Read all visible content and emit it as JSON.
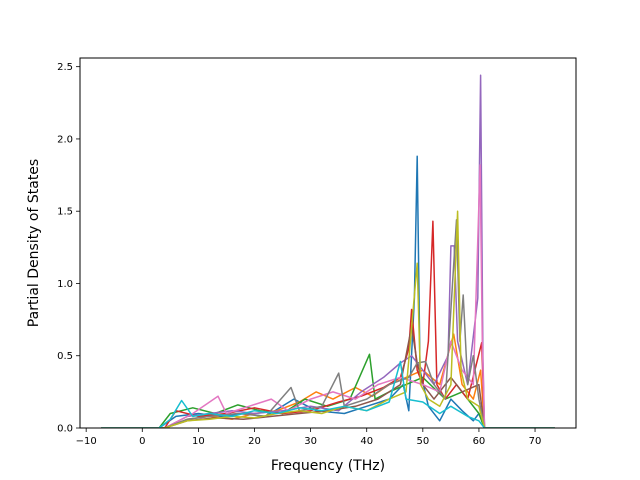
{
  "chart_data": {
    "type": "line",
    "title": "",
    "xlabel": "Frequency (THz)",
    "ylabel": "Partial Density of States",
    "xlim": [
      -11.1,
      77.3
    ],
    "ylim": [
      0.0,
      2.56
    ],
    "xticks": [
      -10,
      0,
      10,
      20,
      30,
      40,
      50,
      60,
      70
    ],
    "yticks": [
      0.0,
      0.5,
      1.0,
      1.5,
      2.0,
      2.5
    ],
    "xtick_labels": [
      "−10",
      "0",
      "10",
      "20",
      "30",
      "40",
      "50",
      "60",
      "70"
    ],
    "ytick_labels": [
      "0.0",
      "0.5",
      "1.0",
      "1.5",
      "2.0",
      "2.5"
    ],
    "grid": false,
    "legend": "none",
    "x_range": [
      -7.3,
      73.5
    ],
    "series": [
      {
        "color": "#1f77b4",
        "points": [
          [
            -7.3,
            0
          ],
          [
            3,
            0
          ],
          [
            6,
            0.08
          ],
          [
            10,
            0.1
          ],
          [
            14,
            0.08
          ],
          [
            18,
            0.1
          ],
          [
            22,
            0.08
          ],
          [
            27,
            0.2
          ],
          [
            31,
            0.12
          ],
          [
            36,
            0.1
          ],
          [
            40,
            0.15
          ],
          [
            44,
            0.2
          ],
          [
            46.5,
            0.3
          ],
          [
            47.5,
            0.12
          ],
          [
            48.5,
            0.9
          ],
          [
            49,
            1.88
          ],
          [
            49.5,
            0.4
          ],
          [
            51,
            0.15
          ],
          [
            53,
            0.05
          ],
          [
            55,
            0.2
          ],
          [
            57,
            0.12
          ],
          [
            59,
            0.05
          ],
          [
            60,
            0.1
          ],
          [
            61,
            0
          ],
          [
            73.5,
            0
          ]
        ]
      },
      {
        "color": "#ff7f0e",
        "points": [
          [
            -7.3,
            0
          ],
          [
            4,
            0
          ],
          [
            8,
            0.06
          ],
          [
            12,
            0.08
          ],
          [
            16,
            0.06
          ],
          [
            20,
            0.1
          ],
          [
            24,
            0.12
          ],
          [
            28,
            0.18
          ],
          [
            31,
            0.25
          ],
          [
            34,
            0.2
          ],
          [
            38,
            0.28
          ],
          [
            41,
            0.22
          ],
          [
            44,
            0.3
          ],
          [
            47,
            0.35
          ],
          [
            50,
            0.4
          ],
          [
            53,
            0.3
          ],
          [
            55.5,
            0.65
          ],
          [
            57,
            0.3
          ],
          [
            59,
            0.2
          ],
          [
            60.3,
            0.4
          ],
          [
            61,
            0
          ],
          [
            73.5,
            0
          ]
        ]
      },
      {
        "color": "#2ca02c",
        "points": [
          [
            -7.3,
            0
          ],
          [
            3,
            0
          ],
          [
            5,
            0.1
          ],
          [
            9,
            0.14
          ],
          [
            13,
            0.1
          ],
          [
            17,
            0.16
          ],
          [
            21,
            0.12
          ],
          [
            25,
            0.1
          ],
          [
            29,
            0.2
          ],
          [
            33,
            0.15
          ],
          [
            37,
            0.2
          ],
          [
            40.5,
            0.51
          ],
          [
            41.5,
            0.2
          ],
          [
            44,
            0.25
          ],
          [
            47,
            0.3
          ],
          [
            50,
            0.35
          ],
          [
            54,
            0.2
          ],
          [
            57,
            0.25
          ],
          [
            60,
            0.1
          ],
          [
            61,
            0
          ],
          [
            73.5,
            0
          ]
        ]
      },
      {
        "color": "#d62728",
        "points": [
          [
            -7.3,
            0
          ],
          [
            4,
            0
          ],
          [
            6,
            0.12
          ],
          [
            10,
            0.08
          ],
          [
            15,
            0.1
          ],
          [
            20,
            0.14
          ],
          [
            25,
            0.1
          ],
          [
            30,
            0.12
          ],
          [
            35,
            0.18
          ],
          [
            39,
            0.22
          ],
          [
            43,
            0.28
          ],
          [
            46,
            0.35
          ],
          [
            47.5,
            0.55
          ],
          [
            48,
            0.82
          ],
          [
            49,
            0.4
          ],
          [
            50,
            0.3
          ],
          [
            51,
            0.6
          ],
          [
            51.8,
            1.43
          ],
          [
            52.5,
            0.3
          ],
          [
            54,
            0.2
          ],
          [
            56,
            0.3
          ],
          [
            58,
            0.2
          ],
          [
            60.5,
            0.59
          ],
          [
            61,
            0
          ],
          [
            73.5,
            0
          ]
        ]
      },
      {
        "color": "#9467bd",
        "points": [
          [
            -7.3,
            0
          ],
          [
            4,
            0
          ],
          [
            8,
            0.08
          ],
          [
            12,
            0.1
          ],
          [
            16,
            0.12
          ],
          [
            20,
            0.1
          ],
          [
            25,
            0.12
          ],
          [
            30,
            0.15
          ],
          [
            35,
            0.12
          ],
          [
            39,
            0.25
          ],
          [
            43,
            0.35
          ],
          [
            46,
            0.45
          ],
          [
            48,
            0.5
          ],
          [
            50,
            0.4
          ],
          [
            52,
            0.3
          ],
          [
            54.5,
            0.5
          ],
          [
            55,
            1.26
          ],
          [
            55.6,
            1.26
          ],
          [
            56.2,
            0.6
          ],
          [
            58,
            0.3
          ],
          [
            59.8,
            0.9
          ],
          [
            60.3,
            2.44
          ],
          [
            60.7,
            0.5
          ],
          [
            61,
            0
          ],
          [
            73.5,
            0
          ]
        ]
      },
      {
        "color": "#8c564b",
        "points": [
          [
            -7.3,
            0
          ],
          [
            4,
            0
          ],
          [
            8,
            0.05
          ],
          [
            13,
            0.07
          ],
          [
            18,
            0.06
          ],
          [
            23,
            0.08
          ],
          [
            28,
            0.1
          ],
          [
            33,
            0.12
          ],
          [
            38,
            0.15
          ],
          [
            42,
            0.2
          ],
          [
            46,
            0.3
          ],
          [
            48,
            0.7
          ],
          [
            49,
            0.45
          ],
          [
            50,
            0.3
          ],
          [
            52,
            0.2
          ],
          [
            55,
            0.35
          ],
          [
            57,
            0.25
          ],
          [
            60,
            0.3
          ],
          [
            61,
            0
          ],
          [
            73.5,
            0
          ]
        ]
      },
      {
        "color": "#e377c2",
        "points": [
          [
            -7.3,
            0
          ],
          [
            4,
            0
          ],
          [
            9,
            0.1
          ],
          [
            13.5,
            0.22
          ],
          [
            15,
            0.1
          ],
          [
            19,
            0.15
          ],
          [
            23,
            0.2
          ],
          [
            26,
            0.12
          ],
          [
            30,
            0.2
          ],
          [
            34,
            0.25
          ],
          [
            38,
            0.2
          ],
          [
            42,
            0.3
          ],
          [
            46,
            0.35
          ],
          [
            50,
            0.3
          ],
          [
            53,
            0.25
          ],
          [
            55,
            0.6
          ],
          [
            57,
            0.4
          ],
          [
            59,
            0.3
          ],
          [
            60.2,
            1.82
          ],
          [
            60.6,
            0.6
          ],
          [
            61,
            0
          ],
          [
            73.5,
            0
          ]
        ]
      },
      {
        "color": "#7f7f7f",
        "points": [
          [
            -7.3,
            0
          ],
          [
            4,
            0
          ],
          [
            8,
            0.06
          ],
          [
            12,
            0.08
          ],
          [
            17,
            0.1
          ],
          [
            22,
            0.08
          ],
          [
            26.5,
            0.28
          ],
          [
            28,
            0.12
          ],
          [
            32,
            0.15
          ],
          [
            35,
            0.38
          ],
          [
            36,
            0.15
          ],
          [
            40,
            0.2
          ],
          [
            44,
            0.3
          ],
          [
            47.5,
            0.35
          ],
          [
            49,
            0.45
          ],
          [
            50.5,
            0.46
          ],
          [
            52,
            0.3
          ],
          [
            54,
            0.2
          ],
          [
            56,
            1.44
          ],
          [
            56.6,
            0.6
          ],
          [
            57.2,
            0.92
          ],
          [
            58,
            0.3
          ],
          [
            59,
            0.5
          ],
          [
            60,
            0.2
          ],
          [
            61,
            0
          ],
          [
            73.5,
            0
          ]
        ]
      },
      {
        "color": "#bcbd22",
        "points": [
          [
            -7.3,
            0
          ],
          [
            4,
            0
          ],
          [
            8,
            0.05
          ],
          [
            12,
            0.06
          ],
          [
            16,
            0.08
          ],
          [
            20,
            0.07
          ],
          [
            24,
            0.1
          ],
          [
            28,
            0.12
          ],
          [
            32,
            0.1
          ],
          [
            36,
            0.15
          ],
          [
            40,
            0.12
          ],
          [
            44,
            0.2
          ],
          [
            47,
            0.25
          ],
          [
            49,
            1.14
          ],
          [
            49.6,
            0.3
          ],
          [
            51,
            0.2
          ],
          [
            53,
            0.15
          ],
          [
            55,
            0.3
          ],
          [
            56.2,
            1.5
          ],
          [
            56.8,
            0.4
          ],
          [
            58,
            0.2
          ],
          [
            60,
            0.15
          ],
          [
            61,
            0
          ],
          [
            73.5,
            0
          ]
        ]
      },
      {
        "color": "#17becf",
        "points": [
          [
            -7.3,
            0
          ],
          [
            3,
            0
          ],
          [
            5,
            0.06
          ],
          [
            7,
            0.19
          ],
          [
            9,
            0.08
          ],
          [
            12,
            0.1
          ],
          [
            16,
            0.08
          ],
          [
            20,
            0.12
          ],
          [
            24,
            0.1
          ],
          [
            28,
            0.14
          ],
          [
            32,
            0.12
          ],
          [
            36,
            0.15
          ],
          [
            40,
            0.12
          ],
          [
            44,
            0.18
          ],
          [
            46,
            0.46
          ],
          [
            47,
            0.2
          ],
          [
            50,
            0.18
          ],
          [
            53,
            0.1
          ],
          [
            55,
            0.15
          ],
          [
            58,
            0.08
          ],
          [
            60,
            0.05
          ],
          [
            61,
            0
          ],
          [
            73.5,
            0
          ]
        ]
      }
    ]
  }
}
